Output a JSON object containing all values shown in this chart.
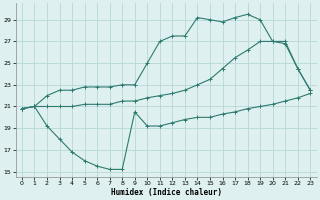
{
  "bg_color": "#dff0f0",
  "grid_color": "#b8d8d8",
  "line_color": "#2d7a70",
  "line1_x": [
    0,
    1,
    2,
    3,
    4,
    5,
    6,
    7,
    8,
    9,
    10,
    11,
    12,
    13,
    14,
    15,
    16,
    17,
    18,
    19,
    20,
    21,
    22,
    23
  ],
  "line1_y": [
    20.8,
    21.0,
    19.2,
    18.0,
    16.8,
    16.0,
    15.5,
    15.2,
    15.2,
    20.5,
    19.2,
    19.2,
    19.5,
    19.8,
    20.0,
    20.0,
    20.3,
    20.5,
    20.8,
    21.0,
    21.2,
    21.5,
    21.8,
    22.2
  ],
  "line2_x": [
    0,
    1,
    2,
    3,
    4,
    5,
    6,
    7,
    8,
    9,
    10,
    11,
    12,
    13,
    14,
    15,
    16,
    17,
    18,
    19,
    20,
    21,
    22,
    23
  ],
  "line2_y": [
    20.8,
    21.0,
    22.0,
    22.5,
    22.5,
    22.8,
    22.8,
    22.8,
    23.0,
    23.0,
    25.0,
    27.0,
    27.5,
    27.5,
    29.2,
    29.0,
    28.8,
    29.2,
    29.5,
    29.0,
    27.0,
    27.0,
    24.5,
    22.5
  ],
  "line3_x": [
    0,
    1,
    2,
    3,
    4,
    5,
    6,
    7,
    8,
    9,
    10,
    11,
    12,
    13,
    14,
    15,
    16,
    17,
    18,
    19,
    20,
    21,
    22,
    23
  ],
  "line3_y": [
    20.8,
    21.0,
    21.0,
    21.0,
    21.0,
    21.2,
    21.2,
    21.2,
    21.5,
    21.5,
    21.8,
    22.0,
    22.2,
    22.5,
    23.0,
    23.5,
    24.5,
    25.5,
    26.2,
    27.0,
    27.0,
    26.8,
    24.5,
    22.5
  ],
  "ylim": [
    14.5,
    30.5
  ],
  "xlim": [
    -0.5,
    23.5
  ],
  "yticks": [
    15,
    17,
    19,
    21,
    23,
    25,
    27,
    29
  ],
  "xticks": [
    0,
    1,
    2,
    3,
    4,
    5,
    6,
    7,
    8,
    9,
    10,
    11,
    12,
    13,
    14,
    15,
    16,
    17,
    18,
    19,
    20,
    21,
    22,
    23
  ],
  "xlabel": "Humidex (Indice chaleur)"
}
